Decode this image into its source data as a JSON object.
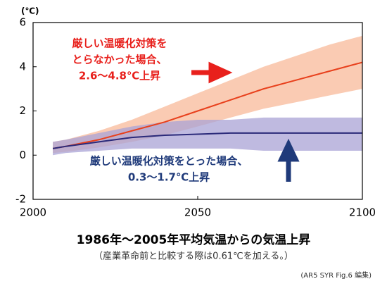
{
  "chart_data": {
    "type": "line",
    "title": "1986年～2005年平均気温からの気温上昇",
    "subtitle": "（産業革命前と比較する際は0.61℃を加える。）",
    "source": "(AR5 SYR Fig.6 編集)",
    "y_label": "(℃)",
    "x": [
      2006,
      2010,
      2020,
      2030,
      2040,
      2050,
      2060,
      2070,
      2080,
      2090,
      2100
    ],
    "series": [
      {
        "color": "#e8401c",
        "band_color": "#f8b99a",
        "values": [
          0.3,
          0.4,
          0.7,
          1.1,
          1.5,
          2.0,
          2.5,
          3.0,
          3.4,
          3.8,
          4.2
        ],
        "lower": [
          0.1,
          0.15,
          0.35,
          0.6,
          0.9,
          1.3,
          1.7,
          2.1,
          2.4,
          2.7,
          3.0
        ],
        "upper": [
          0.6,
          0.7,
          1.1,
          1.6,
          2.2,
          2.8,
          3.4,
          4.0,
          4.5,
          5.0,
          5.4
        ]
      },
      {
        "color": "#2b2a7a",
        "band_color": "#a9a3d6",
        "values": [
          0.3,
          0.4,
          0.6,
          0.8,
          0.9,
          0.95,
          1.0,
          1.0,
          1.0,
          1.0,
          1.0
        ],
        "lower": [
          0.0,
          0.1,
          0.2,
          0.3,
          0.3,
          0.3,
          0.3,
          0.2,
          0.2,
          0.2,
          0.2
        ],
        "upper": [
          0.6,
          0.7,
          1.0,
          1.3,
          1.5,
          1.6,
          1.6,
          1.7,
          1.7,
          1.7,
          1.7
        ]
      }
    ],
    "annotations": [
      {
        "lines": [
          "厳しい温暖化対策を",
          "とらなかった場合、",
          "2.6～4.8℃上昇"
        ],
        "color": "#e8201c"
      },
      {
        "lines": [
          "厳しい温暖化対策をとった場合、",
          "0.3～1.7℃上昇"
        ],
        "color": "#1f3a7a"
      }
    ],
    "xlim": [
      2000,
      2100
    ],
    "xticks": [
      2000,
      2050,
      2100
    ],
    "ylim": [
      -2,
      6
    ],
    "yticks": [
      -2,
      0,
      2,
      4,
      6
    ]
  }
}
